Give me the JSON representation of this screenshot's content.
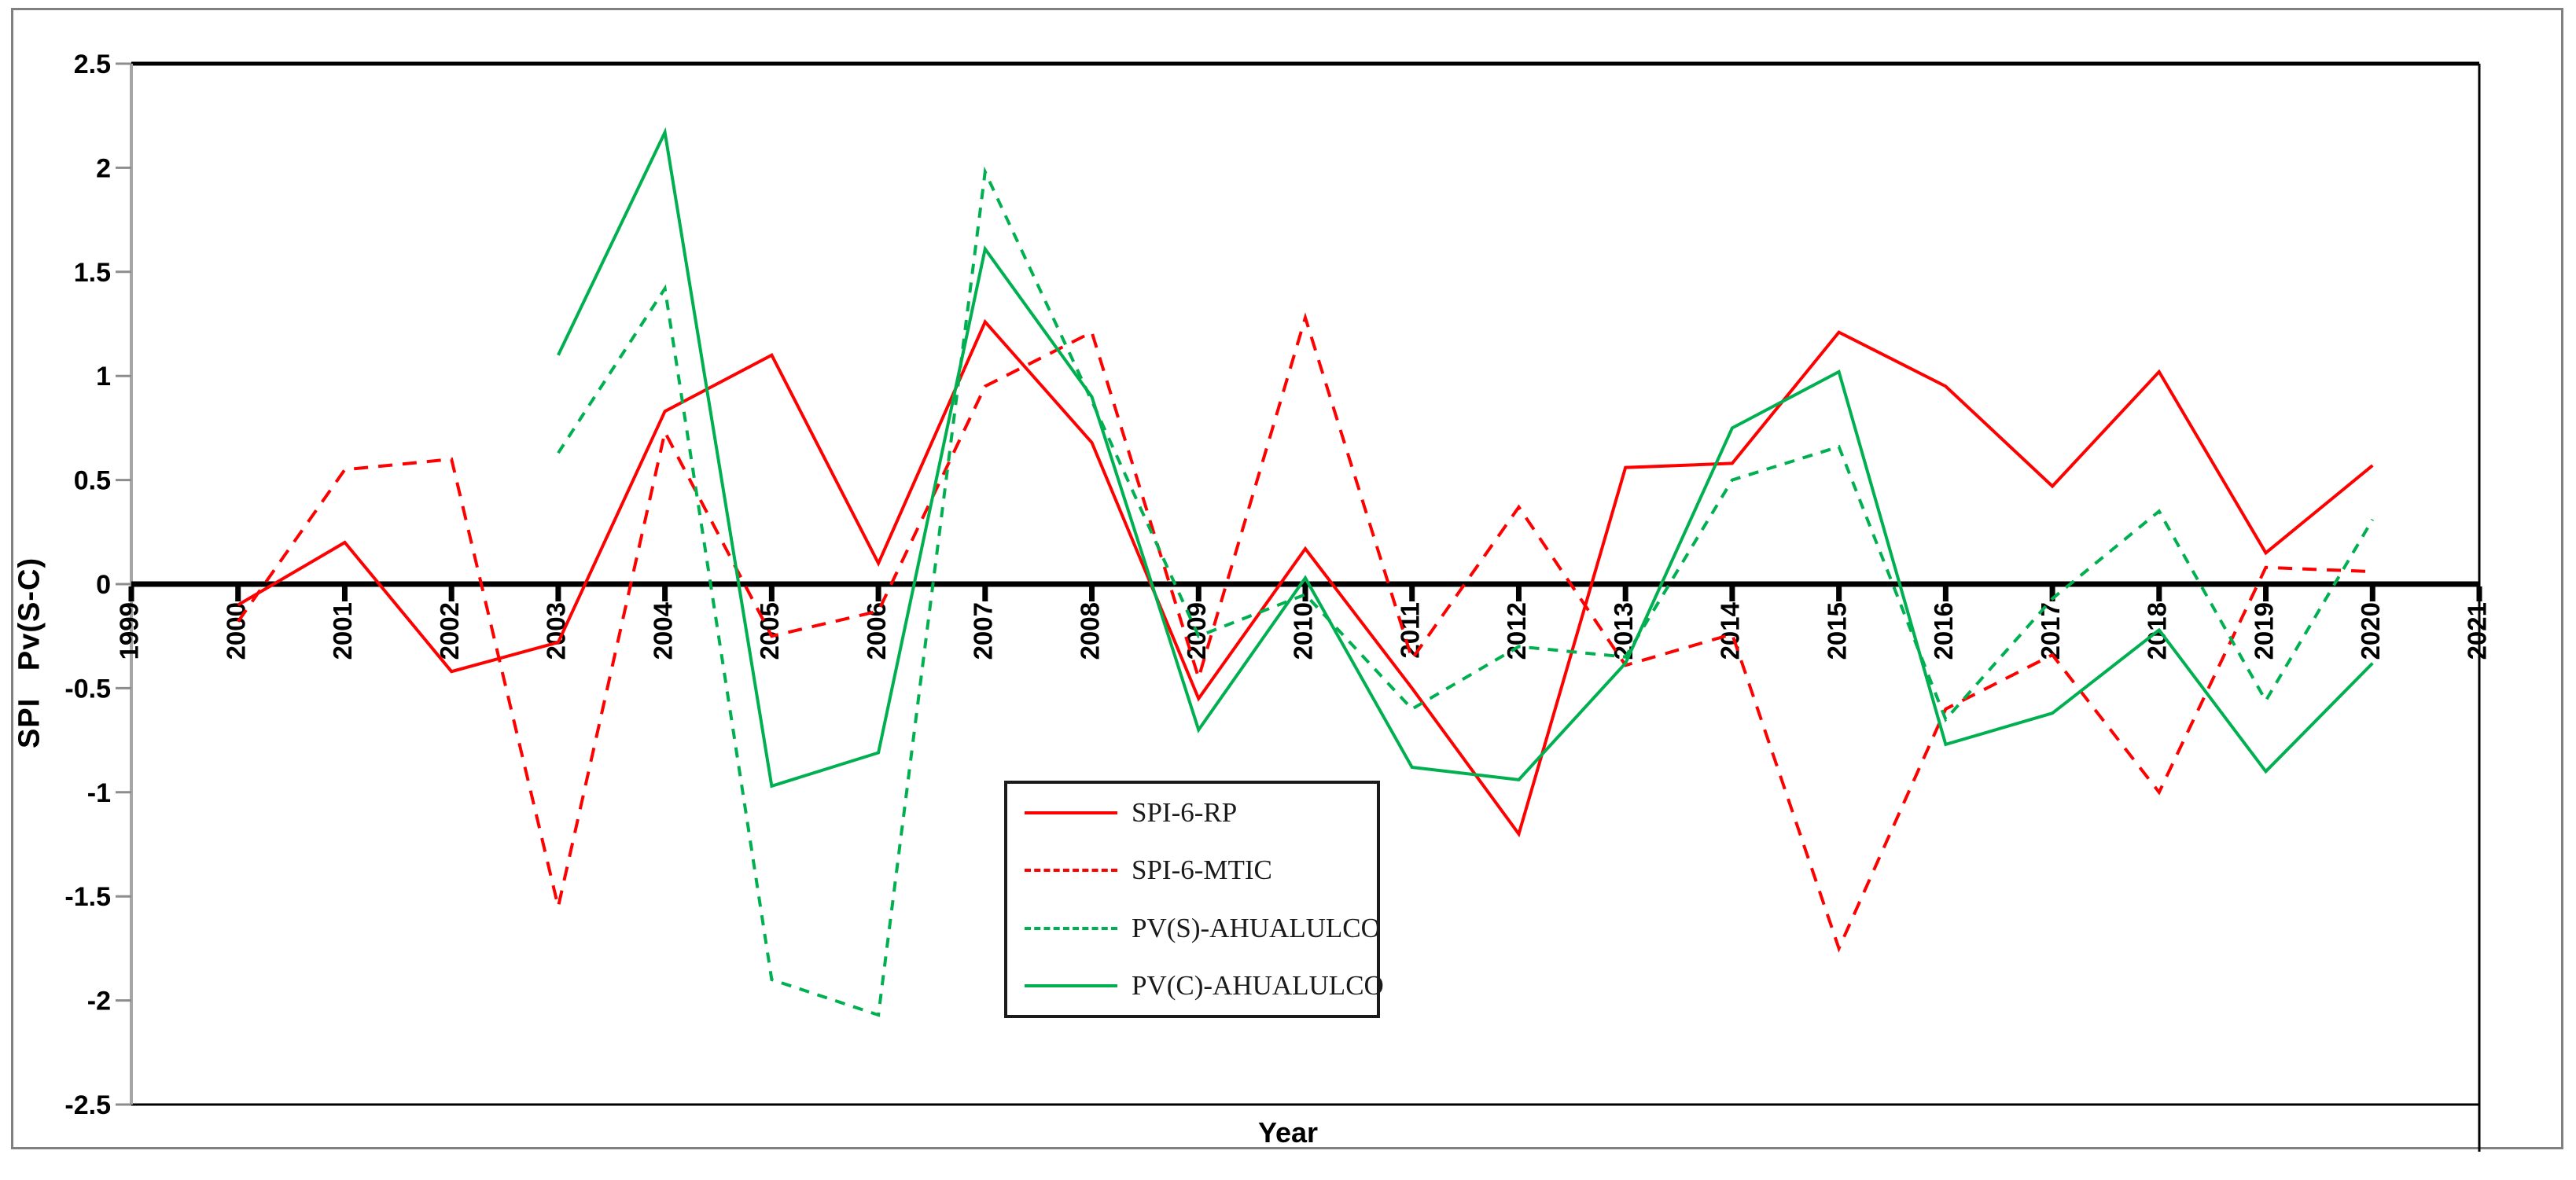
{
  "figure": {
    "background_color": "#FFFFFF",
    "outer_border_color": "#808080"
  },
  "chart_data": {
    "type": "line",
    "title": "",
    "xlabel": "Year",
    "ylabel": "SPI   Pv(S-C)",
    "grid": false,
    "legend_position": "inside-lower-center",
    "xlim": [
      1999,
      2021
    ],
    "ylim": [
      -2.5,
      2.5
    ],
    "x_tick_labels": [
      "1999",
      "2000",
      "2001",
      "2002",
      "2003",
      "2004",
      "2005",
      "2006",
      "2007",
      "2008",
      "2009",
      "2010",
      "2011",
      "2012",
      "2013",
      "2014",
      "2015",
      "2016",
      "2017",
      "2018",
      "2019",
      "2020",
      "2021"
    ],
    "y_tick_labels": [
      "2.5",
      "2",
      "1.5",
      "1",
      "0.5",
      "0",
      "-0.5",
      "-1",
      "-1.5",
      "-2",
      "-2.5"
    ],
    "axis_colors": {
      "zero_line": "#000000",
      "left_axis": "#A6A6A6",
      "plot_border": "#000000",
      "tick": "#000000"
    },
    "series": [
      {
        "name": "SPI-6-RP",
        "color": "#FF0000",
        "line_style": "solid",
        "years": [
          2000,
          2001,
          2002,
          2003,
          2004,
          2005,
          2006,
          2007,
          2008,
          2009,
          2010,
          2011,
          2012,
          2013,
          2014,
          2015,
          2016,
          2017,
          2018,
          2019,
          2020
        ],
        "values": [
          -0.1,
          0.2,
          -0.42,
          -0.28,
          0.83,
          1.1,
          0.1,
          1.26,
          0.68,
          -0.55,
          0.17,
          -0.5,
          -1.2,
          0.56,
          0.58,
          1.21,
          0.95,
          0.47,
          1.02,
          0.15,
          0.57
        ]
      },
      {
        "name": "SPI-6-MTIC",
        "color": "#FF0000",
        "line_style": "dashed-long",
        "years": [
          2000,
          2001,
          2002,
          2003,
          2004,
          2005,
          2006,
          2007,
          2008,
          2009,
          2010,
          2011,
          2012,
          2013,
          2014,
          2015,
          2016,
          2017,
          2018,
          2019,
          2020
        ],
        "values": [
          -0.18,
          0.55,
          0.6,
          -1.55,
          0.73,
          -0.25,
          -0.13,
          0.95,
          1.21,
          -0.45,
          1.28,
          -0.36,
          0.37,
          -0.39,
          -0.24,
          -1.75,
          -0.6,
          -0.34,
          -1.0,
          0.08,
          0.06
        ]
      },
      {
        "name": "PV(S)-AHUALULCO",
        "color": "#00B050",
        "line_style": "dashed",
        "years": [
          2003,
          2004,
          2005,
          2006,
          2007,
          2008,
          2009,
          2010,
          2011,
          2012,
          2013,
          2014,
          2015,
          2016,
          2017,
          2018,
          2019,
          2020
        ],
        "values": [
          0.63,
          1.42,
          -1.9,
          -2.07,
          1.98,
          0.88,
          -0.25,
          -0.05,
          -0.6,
          -0.3,
          -0.35,
          0.5,
          0.66,
          -0.65,
          -0.07,
          0.35,
          -0.56,
          0.31
        ]
      },
      {
        "name": "PV(C)-AHUALULCO",
        "color": "#00B050",
        "line_style": "solid",
        "years": [
          2003,
          2004,
          2005,
          2006,
          2007,
          2008,
          2009,
          2010,
          2011,
          2012,
          2013,
          2014,
          2015,
          2016,
          2017,
          2018,
          2019,
          2020
        ],
        "values": [
          1.1,
          2.17,
          -0.97,
          -0.81,
          1.61,
          0.9,
          -0.7,
          0.03,
          -0.88,
          -0.94,
          -0.38,
          0.75,
          1.02,
          -0.77,
          -0.62,
          -0.22,
          -0.9,
          -0.38
        ]
      }
    ]
  }
}
